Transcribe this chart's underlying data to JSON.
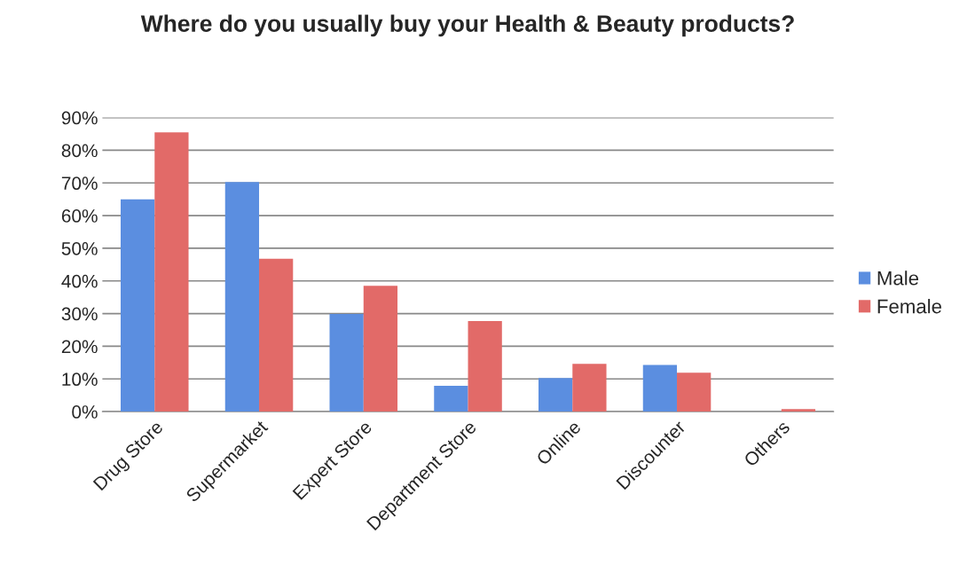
{
  "chart_data": {
    "type": "bar",
    "title": "Where do you usually buy your Health & Beauty products?",
    "categories": [
      "Drug Store",
      "Supermarket",
      "Expert Store",
      "Department Store",
      "Online",
      "Discounter",
      "Others"
    ],
    "series": [
      {
        "name": "Male",
        "color": "#5b8ee0",
        "values": [
          65,
          70.3,
          29.9,
          7.9,
          10.3,
          14.3,
          null
        ]
      },
      {
        "name": "Female",
        "color": "#e26a68",
        "values": [
          85.5,
          46.8,
          38.5,
          27.7,
          14.6,
          11.9,
          0.8
        ]
      }
    ],
    "ylim": [
      0,
      90
    ],
    "yticks": [
      {
        "value": 0,
        "label": "0%"
      },
      {
        "value": 10,
        "label": "10%"
      },
      {
        "value": 20,
        "label": "20%"
      },
      {
        "value": 30,
        "label": "30%"
      },
      {
        "value": 40,
        "label": "40%"
      },
      {
        "value": 50,
        "label": "50%"
      },
      {
        "value": 60,
        "label": "60%"
      },
      {
        "value": 70,
        "label": "70%"
      },
      {
        "value": 80,
        "label": "80%"
      },
      {
        "value": 90,
        "label": "90%"
      }
    ],
    "grid": "y",
    "legend": "right"
  }
}
